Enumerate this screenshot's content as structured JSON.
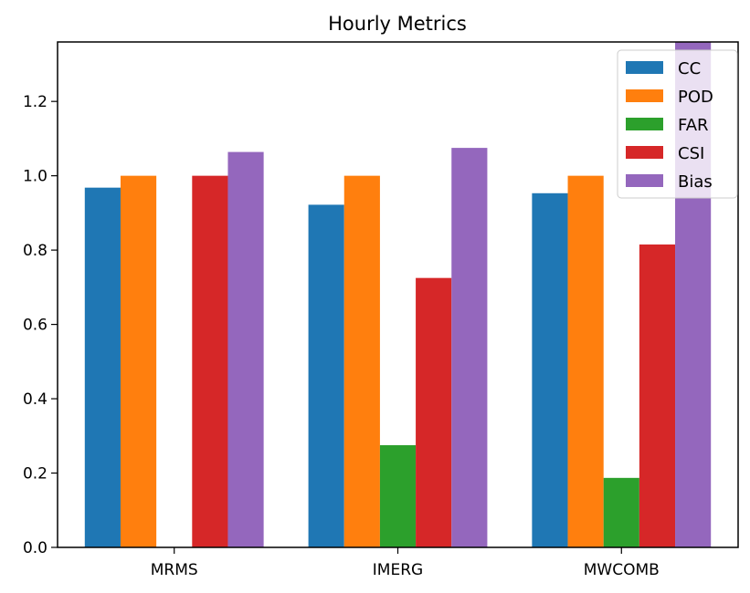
{
  "chart_data": {
    "type": "bar",
    "title": "Hourly Metrics",
    "xlabel": "",
    "ylabel": "",
    "categories": [
      "MRMS",
      "IMERG",
      "MWCOMB"
    ],
    "series": [
      {
        "name": "CC",
        "color": "#1f77b4",
        "values": [
          0.968,
          0.922,
          0.953
        ]
      },
      {
        "name": "POD",
        "color": "#ff7f0e",
        "values": [
          1.0,
          1.0,
          1.0
        ]
      },
      {
        "name": "FAR",
        "color": "#2ca02c",
        "values": [
          0.0,
          0.275,
          0.187
        ]
      },
      {
        "name": "CSI",
        "color": "#d62728",
        "values": [
          1.0,
          0.725,
          0.815
        ]
      },
      {
        "name": "Bias",
        "color": "#9467bd",
        "values": [
          1.064,
          1.075,
          1.36
        ]
      }
    ],
    "ylim": [
      0,
      1.36
    ],
    "yticks": [
      "0.0",
      "0.2",
      "0.4",
      "0.6",
      "0.8",
      "1.0",
      "1.2"
    ],
    "legend_position": "upper-right",
    "grid": false
  }
}
